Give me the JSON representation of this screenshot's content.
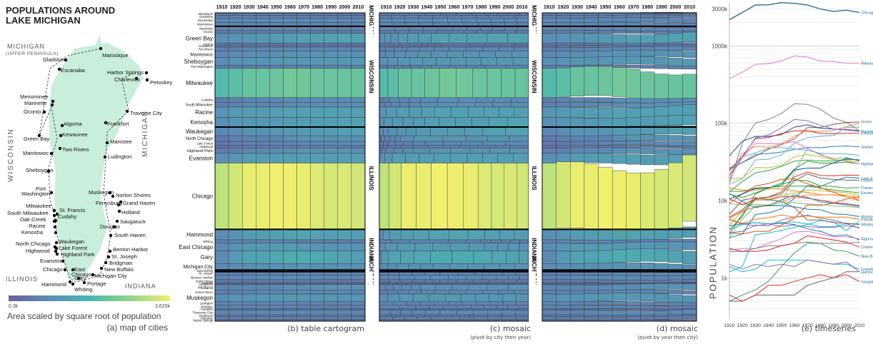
{
  "figure": {
    "map": {
      "title_line1": "POPULATIONS AROUND",
      "title_line2": "LAKE MICHIGAN",
      "caption": "(a) map of cities",
      "legend_title": "Area scaled by square root of population",
      "legend_min": "0.3k",
      "legend_max": "3,620k",
      "state_labels": [
        "MICHIGAN",
        "(UPPER PENINSULA)",
        "WISCONSIN",
        "MICHIGAN",
        "ILLINOIS",
        "INDIANA"
      ],
      "colors": {
        "lake": "#c9eedb",
        "ramp": [
          "#6a5fa0",
          "#5a8fb5",
          "#4ab5b0",
          "#8fd58a",
          "#f1ef6e"
        ]
      }
    },
    "years": [
      "1910",
      "1920",
      "1930",
      "1940",
      "1950",
      "1960",
      "1970",
      "1980",
      "1990",
      "2000",
      "2010"
    ],
    "state_bands": [
      "MICHIGAN",
      "WISCONSIN",
      "ILLINOIS",
      "INDIANA",
      "MICHIGAN"
    ],
    "cities": [
      {
        "name": "Manistique",
        "state": "MI",
        "pop": [
          4.7,
          5.0,
          5.2,
          5.0,
          5.1,
          4.9,
          4.3,
          4.0,
          3.5,
          3.6,
          3.1
        ]
      },
      {
        "name": "Gladstone",
        "state": "MI",
        "pop": [
          4.2,
          4.9,
          5.2,
          5.0,
          5.2,
          5.3,
          5.0,
          4.6,
          4.6,
          5.0,
          5.0
        ]
      },
      {
        "name": "Escanaba",
        "state": "MI",
        "pop": [
          13.2,
          13.1,
          14.5,
          14.8,
          15.2,
          15.4,
          15.4,
          14.4,
          13.7,
          13.1,
          12.6
        ]
      },
      {
        "name": "Menominee",
        "state": "MI",
        "pop": [
          10.5,
          8.9,
          10.3,
          10.2,
          11.2,
          11.3,
          10.7,
          10.1,
          9.4,
          9.1,
          8.6
        ]
      },
      {
        "name": "Marinette",
        "state": "WI",
        "pop": [
          14.6,
          13.6,
          13.7,
          14.2,
          14.2,
          13.3,
          12.7,
          11.9,
          11.8,
          11.7,
          10.9
        ]
      },
      {
        "name": "Oconto",
        "state": "WI",
        "pop": [
          5.6,
          5.0,
          4.7,
          5.0,
          4.6,
          4.8,
          4.6,
          4.5,
          4.5,
          4.7,
          4.5
        ]
      },
      {
        "name": "Green Bay",
        "state": "WI",
        "pop": [
          25.2,
          31.0,
          37.4,
          46.2,
          52.7,
          62.9,
          87.8,
          87.9,
          96.5,
          102.3,
          104.1
        ]
      },
      {
        "name": "Algoma",
        "state": "WI",
        "pop": [
          2.3,
          2.4,
          2.4,
          2.8,
          3.2,
          3.9,
          4.0,
          3.7,
          3.4,
          3.4,
          3.2
        ]
      },
      {
        "name": "Kewaunee",
        "state": "WI",
        "pop": [
          2.2,
          2.2,
          2.4,
          2.6,
          2.6,
          2.8,
          2.9,
          2.8,
          2.8,
          2.8,
          2.9
        ]
      },
      {
        "name": "Two Rivers",
        "state": "WI",
        "pop": [
          4.8,
          7.3,
          10.1,
          10.3,
          11.7,
          12.4,
          13.6,
          13.4,
          13.0,
          12.6,
          11.7
        ]
      },
      {
        "name": "Manitowoc",
        "state": "WI",
        "pop": [
          13.0,
          17.6,
          22.9,
          24.4,
          27.6,
          32.3,
          33.4,
          32.5,
          32.5,
          34.1,
          33.7
        ]
      },
      {
        "name": "Sheboygan",
        "state": "WI",
        "pop": [
          26.4,
          31.0,
          39.3,
          40.6,
          42.4,
          45.7,
          48.5,
          48.1,
          50.0,
          50.8,
          49.3
        ]
      },
      {
        "name": "Port Washington",
        "state": "WI",
        "pop": [
          3.8,
          3.7,
          4.0,
          4.0,
          4.8,
          5.9,
          8.8,
          8.6,
          9.3,
          10.5,
          11.3
        ]
      },
      {
        "name": "Milwaukee",
        "state": "WI",
        "pop": [
          373.9,
          457.1,
          578.2,
          587.5,
          637.4,
          741.3,
          717.1,
          636.2,
          628.1,
          597.0,
          594.8
        ]
      },
      {
        "name": "Cudahy",
        "state": "WI",
        "pop": [
          3.7,
          6.7,
          10.6,
          11.0,
          12.2,
          17.9,
          22.1,
          19.5,
          18.7,
          18.4,
          18.3
        ]
      },
      {
        "name": "South Milwaukee",
        "state": "WI",
        "pop": [
          6.1,
          7.6,
          10.7,
          11.1,
          12.9,
          20.3,
          23.3,
          21.1,
          20.9,
          21.3,
          21.2
        ]
      },
      {
        "name": "Racine",
        "state": "WI",
        "pop": [
          38.0,
          58.6,
          67.5,
          67.2,
          71.2,
          89.1,
          95.2,
          85.7,
          84.3,
          81.9,
          78.9
        ]
      },
      {
        "name": "Kenosha",
        "state": "WI",
        "pop": [
          21.4,
          40.5,
          50.3,
          48.8,
          54.4,
          67.9,
          79.0,
          77.7,
          80.4,
          90.4,
          99.2
        ]
      },
      {
        "name": "Waukegan",
        "state": "IL",
        "pop": [
          16.1,
          19.2,
          33.5,
          34.2,
          38.9,
          55.7,
          65.3,
          67.7,
          69.4,
          87.9,
          89.1
        ]
      },
      {
        "name": "North Chicago",
        "state": "IL",
        "pop": [
          3.3,
          5.8,
          8.5,
          8.5,
          8.6,
          22.9,
          47.3,
          38.8,
          34.9,
          35.9,
          32.6
        ]
      },
      {
        "name": "Lake Forest",
        "state": "IL",
        "pop": [
          3.3,
          3.7,
          6.6,
          6.9,
          7.8,
          10.7,
          15.6,
          15.2,
          17.8,
          20.1,
          19.4
        ]
      },
      {
        "name": "Highwood",
        "state": "IL",
        "pop": [
          1.2,
          1.4,
          3.6,
          3.8,
          4.1,
          4.5,
          4.9,
          5.5,
          5.3,
          4.1,
          5.4
        ]
      },
      {
        "name": "Highland Park",
        "state": "IL",
        "pop": [
          4.2,
          6.2,
          12.2,
          14.5,
          16.8,
          25.5,
          32.3,
          30.6,
          30.6,
          31.4,
          29.8
        ]
      },
      {
        "name": "Evanston",
        "state": "IL",
        "pop": [
          24.9,
          37.2,
          63.3,
          65.4,
          73.6,
          79.3,
          80.1,
          73.7,
          73.2,
          74.2,
          74.5
        ]
      },
      {
        "name": "Chicago",
        "state": "IL",
        "pop": [
          2185,
          2702,
          3376,
          3397,
          3621,
          3550,
          3367,
          3005,
          2784,
          2896,
          2695
        ]
      },
      {
        "name": "Hammond",
        "state": "IN",
        "pop": [
          20.9,
          36.0,
          64.6,
          70.2,
          87.6,
          111.7,
          107.8,
          93.7,
          84.2,
          83.0,
          80.8
        ]
      },
      {
        "name": "Whiting",
        "state": "IN",
        "pop": [
          6.6,
          10.1,
          10.9,
          10.3,
          9.7,
          8.1,
          5.6,
          5.6,
          5.2,
          5.1,
          4.9
        ]
      },
      {
        "name": "East Chicago",
        "state": "IN",
        "pop": [
          19.1,
          35.9,
          54.8,
          54.6,
          54.3,
          57.7,
          46.9,
          39.8,
          33.9,
          32.4,
          29.7
        ]
      },
      {
        "name": "Gary",
        "state": "IN",
        "pop": [
          16.8,
          55.4,
          100.4,
          111.7,
          133.9,
          178.3,
          175.4,
          151.9,
          116.6,
          102.7,
          80.3
        ]
      },
      {
        "name": "Michigan City",
        "state": "IN",
        "pop": [
          19.0,
          19.5,
          26.7,
          26.5,
          28.4,
          36.7,
          39.4,
          36.9,
          33.8,
          32.9,
          31.5
        ]
      },
      {
        "name": "New Buffalo",
        "state": "MI",
        "pop": [
          0.5,
          0.6,
          0.7,
          0.9,
          1.4,
          2.1,
          2.8,
          2.8,
          2.3,
          2.2,
          1.9
        ]
      },
      {
        "name": "St. Joseph",
        "state": "MI",
        "pop": [
          5.9,
          7.3,
          8.3,
          8.6,
          10.2,
          11.8,
          11.0,
          9.6,
          9.2,
          8.8,
          8.4
        ]
      },
      {
        "name": "Benton Harbor",
        "state": "MI",
        "pop": [
          9.2,
          12.2,
          15.4,
          16.6,
          18.8,
          19.1,
          16.5,
          14.7,
          12.8,
          11.2,
          10.0
        ]
      },
      {
        "name": "South Haven",
        "state": "MI",
        "pop": [
          3.8,
          4.0,
          4.8,
          4.7,
          5.6,
          6.1,
          6.5,
          5.9,
          5.6,
          5.0,
          4.4
        ]
      },
      {
        "name": "Douglas",
        "state": "MI",
        "pop": [
          0.5,
          0.5,
          0.6,
          0.6,
          0.6,
          0.6,
          0.8,
          0.9,
          1.0,
          1.2,
          1.2
        ]
      },
      {
        "name": "Saugatuck",
        "state": "MI",
        "pop": [
          0.6,
          0.5,
          0.6,
          0.8,
          0.8,
          0.9,
          1.0,
          1.1,
          1.0,
          1.1,
          0.9
        ]
      },
      {
        "name": "Holland",
        "state": "MI",
        "pop": [
          10.5,
          12.2,
          14.3,
          14.6,
          15.9,
          24.8,
          26.3,
          26.3,
          30.7,
          35.0,
          33.1
        ]
      },
      {
        "name": "Grand Haven",
        "state": "MI",
        "pop": [
          5.9,
          7.2,
          8.3,
          8.8,
          9.5,
          11.1,
          11.8,
          11.8,
          11.9,
          11.2,
          10.4
        ]
      },
      {
        "name": "Muskegon",
        "state": "MI",
        "pop": [
          24.1,
          36.6,
          41.4,
          47.7,
          48.4,
          46.5,
          44.6,
          40.8,
          40.3,
          40.1,
          38.4
        ]
      },
      {
        "name": "Ludington",
        "state": "MI",
        "pop": [
          9.1,
          8.8,
          8.9,
          8.7,
          9.5,
          9.4,
          9.0,
          8.9,
          8.5,
          8.4,
          8.1
        ]
      },
      {
        "name": "Manistee",
        "state": "MI",
        "pop": [
          12.4,
          9.7,
          8.1,
          8.7,
          8.6,
          8.3,
          7.7,
          7.6,
          6.7,
          6.6,
          6.2
        ]
      },
      {
        "name": "Frankfort",
        "state": "MI",
        "pop": [
          1.4,
          1.2,
          1.3,
          1.7,
          1.7,
          1.7,
          1.7,
          1.6,
          1.5,
          1.5,
          1.3
        ]
      },
      {
        "name": "Traverse City",
        "state": "MI",
        "pop": [
          12.1,
          10.9,
          12.5,
          14.5,
          16.0,
          18.4,
          18.0,
          15.5,
          15.2,
          14.5,
          14.7
        ]
      },
      {
        "name": "Charlevoix",
        "state": "MI",
        "pop": [
          2.4,
          2.2,
          2.2,
          2.3,
          2.6,
          2.8,
          3.5,
          3.3,
          3.1,
          2.9,
          2.5
        ]
      },
      {
        "name": "Petoskey",
        "state": "MI",
        "pop": [
          5.8,
          5.1,
          5.7,
          6.0,
          6.5,
          6.1,
          6.3,
          6.1,
          6.1,
          6.1,
          5.7
        ]
      },
      {
        "name": "Harbor Springs",
        "state": "MI",
        "pop": [
          1.5,
          1.3,
          1.5,
          1.4,
          1.5,
          1.4,
          1.7,
          1.6,
          1.5,
          1.6,
          1.2
        ]
      }
    ],
    "panel_b": {
      "caption": "(b) table cartogram"
    },
    "panel_c": {
      "caption": "(c) mosaic",
      "sub": "(pivot by city then year)"
    },
    "panel_d": {
      "caption": "(d) mosaic",
      "sub": "(pivot by year then city)"
    },
    "panel_e": {
      "caption": "(e) timeseries",
      "ylabel": "POPULATION",
      "yticks": [
        "3000k",
        "1000k",
        "100k",
        "10k",
        "1k"
      ],
      "right_labels": [
        "Chicago",
        "Milwaukee",
        "Green Bay",
        "Racine",
        "Sheboygan",
        "Evanston",
        "Highland Park",
        "Lake Forest",
        "Cudahy",
        "Traverse City",
        "Escanaba",
        "Manistee",
        "Petoskey",
        "Whiting",
        "Algoma",
        "Charlevoix",
        "New Buffalo",
        "Frankfort",
        "Harbor Springs",
        "Saugatuck"
      ]
    }
  },
  "chart_data": [
    {
      "type": "map",
      "title": "POPULATIONS AROUND LAKE MICHIGAN",
      "legend": {
        "label": "Area scaled by square root of population",
        "min": "0.3k",
        "max": "3,620k"
      }
    },
    {
      "type": "heatmap",
      "title": "(b) table cartogram",
      "x": "years 1910–2010",
      "rows": "cities",
      "value": "population"
    },
    {
      "type": "heatmap",
      "title": "(c) mosaic (pivot by city then year)"
    },
    {
      "type": "heatmap",
      "title": "(d) mosaic (pivot by year then city)"
    },
    {
      "type": "line",
      "title": "(e) timeseries",
      "xlabel": "",
      "ylabel": "POPULATION",
      "yscale": "log",
      "ylim": [
        300,
        3600000
      ],
      "xlim": [
        1910,
        2010
      ]
    }
  ]
}
